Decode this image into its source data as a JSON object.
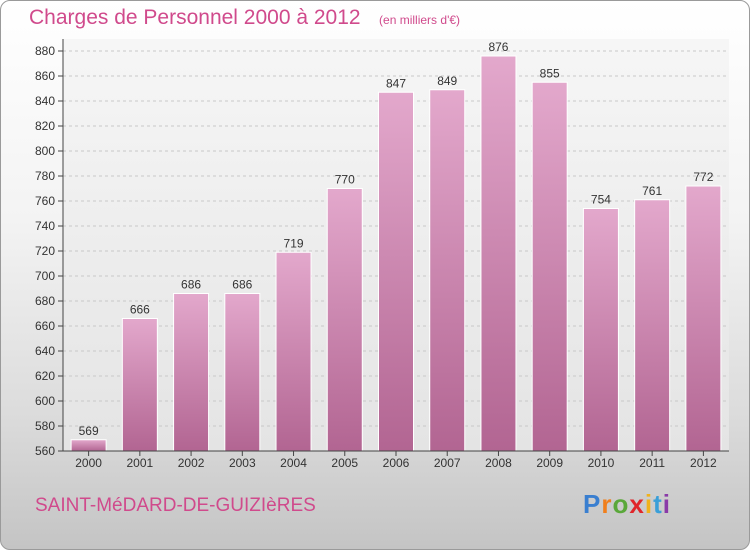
{
  "header": {
    "title": "Charges de Personnel 2000 à 2012",
    "subtitle": "(en milliers d'€)"
  },
  "footer": {
    "location": "SAINT-MéDARD-DE-GUIZIèRES",
    "logo": {
      "text": "Proxiti",
      "letter_colors": [
        "#3a7fd0",
        "#f07f1c",
        "#5aa83a",
        "#e0262a",
        "#f0b21c",
        "#3a9fd8",
        "#8a3aa8"
      ]
    }
  },
  "colors": {
    "bar_top": "#e3a8cc",
    "bar_bottom": "#b26592",
    "accent": "#d04a8c"
  },
  "chart_data": {
    "type": "bar",
    "title": "Charges de Personnel 2000 à 2012",
    "subtitle": "(en milliers d'€)",
    "xlabel": "",
    "ylabel": "",
    "categories": [
      "2000",
      "2001",
      "2002",
      "2003",
      "2004",
      "2005",
      "2006",
      "2007",
      "2008",
      "2009",
      "2010",
      "2011",
      "2012"
    ],
    "values": [
      569,
      666,
      686,
      686,
      719,
      770,
      847,
      849,
      876,
      855,
      754,
      761,
      772
    ],
    "ylim": [
      560,
      880
    ],
    "yticks": [
      560,
      580,
      600,
      620,
      640,
      660,
      680,
      700,
      720,
      740,
      760,
      780,
      800,
      820,
      840,
      860,
      880
    ],
    "grid": "horizontal dashed",
    "data_labels": true
  }
}
